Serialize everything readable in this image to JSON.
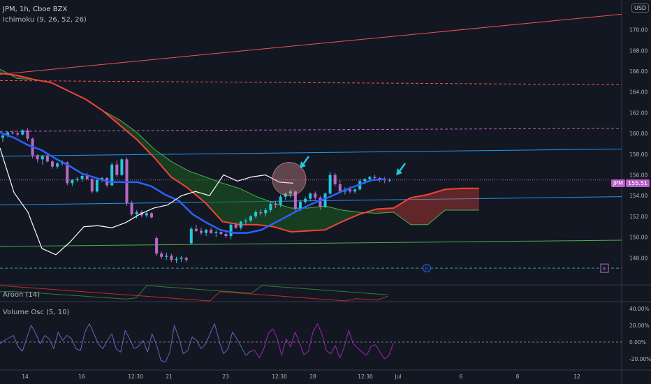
{
  "header": {
    "symbol_line": "JPM, 1h, Cboe BZX",
    "indicator": "Ichimoku (9, 26, 52, 26)"
  },
  "panes": {
    "aroon": "Aroon (14)",
    "volume_osc": "Volume Osc (5, 10)"
  },
  "currency": "USD",
  "last_price": {
    "symbol": "JPM",
    "value": "155.51"
  },
  "markers": {
    "dividend": "D",
    "earnings": "E"
  },
  "colors": {
    "bull": "#26c6da",
    "bear": "#ba68c8",
    "cloud_bear": "#f44336",
    "cloud_bull": "#1b5e20",
    "kijun": "#2962ff",
    "lagging": "#ffffff",
    "arrow": "#26c6da",
    "osc": "#5c6bc0"
  },
  "chart_data": [
    {
      "type": "candlestick",
      "y_ticks": [
        "148.00",
        "150.00",
        "152.00",
        "154.00",
        "156.00",
        "158.00",
        "160.00",
        "162.00",
        "164.00",
        "166.00",
        "168.00",
        "170.00"
      ],
      "ylim": [
        146.2,
        172.2
      ],
      "x_ticks": [
        "14",
        "16",
        "12:30",
        "21",
        "23",
        "12:30",
        "28",
        "12:30",
        "Jul",
        "6",
        "8",
        "12"
      ],
      "candles_ohlc": [
        [
          159.6,
          159.9,
          159.2,
          159.8
        ],
        [
          159.8,
          160.2,
          159.6,
          160.1
        ],
        [
          160.1,
          160.3,
          159.9,
          160.0
        ],
        [
          160.0,
          160.2,
          159.7,
          159.9
        ],
        [
          159.9,
          160.4,
          159.8,
          160.3
        ],
        [
          160.3,
          160.5,
          159.3,
          159.5
        ],
        [
          159.5,
          159.6,
          157.6,
          157.9
        ],
        [
          157.9,
          158.0,
          157.2,
          157.5
        ],
        [
          157.5,
          157.9,
          157.0,
          157.8
        ],
        [
          157.8,
          158.0,
          157.2,
          157.3
        ],
        [
          157.3,
          157.4,
          156.6,
          156.8
        ],
        [
          156.8,
          157.2,
          156.6,
          157.1
        ],
        [
          157.1,
          157.4,
          156.9,
          157.2
        ],
        [
          157.2,
          157.3,
          155.0,
          155.2
        ],
        [
          155.2,
          155.6,
          154.9,
          155.5
        ],
        [
          155.5,
          155.8,
          155.3,
          155.6
        ],
        [
          155.6,
          156.1,
          155.3,
          155.9
        ],
        [
          155.9,
          156.2,
          155.5,
          155.6
        ],
        [
          155.6,
          155.7,
          154.2,
          154.4
        ],
        [
          154.4,
          155.6,
          154.3,
          155.5
        ],
        [
          155.5,
          155.8,
          155.3,
          155.7
        ],
        [
          155.7,
          155.8,
          154.8,
          155.0
        ],
        [
          155.0,
          157.2,
          154.9,
          157.0
        ],
        [
          157.0,
          157.4,
          155.8,
          156.0
        ],
        [
          156.0,
          157.6,
          155.9,
          157.5
        ],
        [
          157.5,
          157.7,
          153.0,
          153.3
        ],
        [
          153.3,
          153.5,
          152.0,
          152.2
        ],
        [
          152.2,
          152.6,
          151.8,
          152.4
        ],
        [
          152.4,
          152.6,
          151.9,
          152.1
        ],
        [
          152.1,
          152.5,
          151.9,
          152.3
        ],
        [
          152.3,
          152.4,
          151.8,
          151.9
        ],
        [
          149.9,
          150.1,
          148.2,
          148.4
        ],
        [
          148.4,
          148.6,
          147.9,
          148.1
        ],
        [
          148.1,
          148.5,
          147.8,
          148.2
        ],
        [
          148.2,
          148.4,
          147.6,
          147.8
        ],
        [
          147.8,
          148.1,
          147.5,
          147.9
        ],
        [
          147.9,
          148.2,
          147.6,
          148.0
        ],
        [
          148.0,
          148.1,
          147.6,
          147.8
        ],
        [
          149.4,
          151.0,
          149.3,
          150.8
        ],
        [
          150.8,
          151.2,
          150.5,
          150.6
        ],
        [
          150.6,
          150.9,
          150.2,
          150.4
        ],
        [
          150.4,
          150.8,
          150.1,
          150.7
        ],
        [
          150.7,
          150.9,
          150.3,
          150.4
        ],
        [
          150.4,
          150.7,
          150.0,
          150.5
        ],
        [
          150.5,
          150.8,
          150.2,
          150.3
        ],
        [
          150.3,
          150.7,
          149.9,
          150.1
        ],
        [
          150.1,
          151.3,
          149.8,
          151.2
        ],
        [
          151.2,
          151.4,
          150.8,
          150.9
        ],
        [
          150.9,
          151.6,
          150.7,
          151.5
        ],
        [
          151.5,
          151.8,
          151.2,
          151.6
        ],
        [
          151.6,
          152.1,
          151.4,
          152.0
        ],
        [
          152.0,
          152.6,
          151.8,
          152.4
        ],
        [
          152.4,
          152.7,
          152.1,
          152.3
        ],
        [
          152.3,
          152.8,
          152.0,
          152.6
        ],
        [
          152.6,
          153.4,
          152.4,
          153.2
        ],
        [
          153.2,
          153.5,
          152.8,
          153.1
        ],
        [
          153.1,
          154.1,
          152.9,
          153.9
        ],
        [
          153.9,
          154.3,
          153.6,
          154.2
        ],
        [
          154.2,
          154.6,
          153.8,
          154.4
        ],
        [
          154.4,
          154.5,
          152.4,
          152.7
        ],
        [
          152.7,
          153.6,
          152.5,
          153.4
        ],
        [
          153.4,
          153.9,
          153.2,
          153.7
        ],
        [
          153.7,
          154.3,
          153.5,
          154.2
        ],
        [
          154.2,
          154.4,
          153.6,
          153.8
        ],
        [
          153.8,
          154.0,
          152.6,
          152.9
        ],
        [
          152.9,
          154.3,
          152.8,
          154.2
        ],
        [
          154.2,
          156.3,
          154.1,
          156.0
        ],
        [
          156.0,
          156.2,
          154.9,
          155.1
        ],
        [
          155.1,
          155.5,
          154.2,
          154.4
        ],
        [
          154.4,
          154.8,
          154.1,
          154.6
        ],
        [
          154.6,
          154.9,
          154.2,
          154.4
        ],
        [
          154.4,
          154.7,
          154.2,
          154.6
        ],
        [
          154.6,
          155.6,
          154.5,
          155.4
        ],
        [
          155.4,
          155.7,
          155.1,
          155.6
        ],
        [
          155.6,
          155.9,
          155.3,
          155.8
        ],
        [
          155.8,
          156.0,
          155.5,
          155.7
        ],
        [
          155.7,
          155.8,
          155.3,
          155.6
        ],
        [
          155.6,
          155.8,
          155.2,
          155.5
        ],
        [
          155.5,
          155.7,
          155.3,
          155.51
        ]
      ],
      "kijun": [
        160.1,
        159.6,
        158.9,
        158.4,
        157.6,
        156.9,
        156.1,
        155.7,
        155.3,
        155.3,
        155.3,
        154.9,
        154.1,
        153.5,
        152.2,
        151.4,
        150.7,
        150.4,
        150.4,
        150.7,
        151.4,
        152.1,
        152.8,
        153.4,
        153.9,
        154.5,
        155.0,
        155.5,
        155.6
      ],
      "lagging": [
        158.6,
        154.3,
        152.4,
        148.9,
        148.3,
        149.5,
        151.0,
        151.1,
        150.9,
        151.4,
        152.2,
        152.8,
        153.1,
        154.0,
        154.4,
        154.0,
        156.0,
        155.4,
        155.8,
        156.0,
        155.3,
        155.2
      ],
      "span_a": [
        166.2,
        165.3,
        165.2,
        164.9,
        164.1,
        163.3,
        162.2,
        161.3,
        160.1,
        158.5,
        157.3,
        156.4,
        155.8,
        155.2,
        154.7,
        153.9,
        153.3,
        152.8,
        152.8,
        153.0,
        152.6,
        152.4,
        152.3,
        152.4,
        151.2,
        151.2,
        152.6,
        152.6,
        152.6
      ],
      "span_b": [
        165.8,
        165.6,
        165.2,
        164.9,
        164.1,
        163.3,
        162.2,
        160.8,
        159.4,
        157.7,
        155.8,
        154.7,
        153.3,
        151.5,
        151.2,
        151.2,
        151.0,
        150.5,
        150.6,
        150.7,
        151.5,
        152.2,
        152.7,
        152.8,
        153.8,
        154.1,
        154.6,
        154.7,
        154.7
      ],
      "h_lines": [
        {
          "p1": [
            0,
            165.7
          ],
          "p2": [
            890,
            171.5
          ],
          "style": "solid",
          "color": "#ef5350"
        },
        {
          "p1": [
            0,
            165.1
          ],
          "p2": [
            890,
            164.7
          ],
          "style": "dashed",
          "color": "#ef5350"
        },
        {
          "p1": [
            0,
            160.2
          ],
          "p2": [
            890,
            160.5
          ],
          "style": "dashed",
          "color": "#ba68c8"
        },
        {
          "p1": [
            0,
            157.8
          ],
          "p2": [
            890,
            158.5
          ],
          "style": "solid",
          "color": "#2196f3"
        },
        {
          "p1": [
            0,
            153.1
          ],
          "p2": [
            890,
            153.9
          ],
          "style": "solid",
          "color": "#2196f3"
        },
        {
          "p1": [
            0,
            149.1
          ],
          "p2": [
            890,
            149.7
          ],
          "style": "solid",
          "color": "#4caf50"
        },
        {
          "p1": [
            0,
            155.51
          ],
          "p2": [
            890,
            155.51
          ],
          "style": "dotted",
          "color": "#ba68c8"
        },
        {
          "p1": [
            0,
            147.0
          ],
          "p2": [
            890,
            147.0
          ],
          "style": "dashed",
          "color": "#26a69a"
        }
      ]
    },
    {
      "type": "line",
      "name": "Aroon (14)",
      "up": [
        60,
        62,
        58,
        55,
        50,
        45,
        40,
        36,
        31,
        26,
        21,
        17,
        12,
        20,
        100,
        95,
        90,
        85,
        80,
        75,
        70,
        65,
        60,
        55,
        50,
        100,
        95,
        90,
        85,
        80,
        75,
        70,
        65,
        60,
        55,
        50,
        45,
        40
      ],
      "down": [
        100,
        95,
        90,
        85,
        80,
        75,
        70,
        65,
        60,
        55,
        50,
        45,
        40,
        35,
        30,
        25,
        20,
        15,
        10,
        5,
        0,
        60,
        55,
        50,
        45,
        40,
        35,
        30,
        25,
        20,
        15,
        10,
        5,
        0,
        15,
        10,
        5,
        30
      ]
    },
    {
      "type": "line",
      "name": "Volume Osc (5, 10)",
      "y_ticks": [
        "40.00%",
        "20.00%",
        "0.00%",
        "-20.00%"
      ],
      "ylim": [
        -30,
        45
      ],
      "values": [
        -2,
        2,
        5,
        8,
        -5,
        -11,
        5,
        20,
        10,
        -2,
        8,
        4,
        -8,
        12,
        2,
        8,
        4,
        -8,
        -10,
        12,
        22,
        10,
        -2,
        -8,
        2,
        10,
        -8,
        -12,
        14,
        4,
        -8,
        -5,
        2,
        -12,
        10,
        -3,
        -22,
        -24,
        -12,
        20,
        5,
        -14,
        -10,
        6,
        2,
        -8,
        -2,
        10,
        22,
        2,
        -14,
        -8,
        12,
        4,
        -6,
        -16,
        -11,
        -10,
        -19,
        -8,
        10,
        16,
        5,
        -16,
        4,
        -6,
        12,
        -1,
        -15,
        -11,
        12,
        22,
        10,
        -10,
        -14,
        -4,
        -19,
        -6,
        14,
        -2,
        -7,
        -12,
        -16,
        -5,
        -3,
        -12,
        -20,
        -16,
        -1
      ]
    }
  ]
}
